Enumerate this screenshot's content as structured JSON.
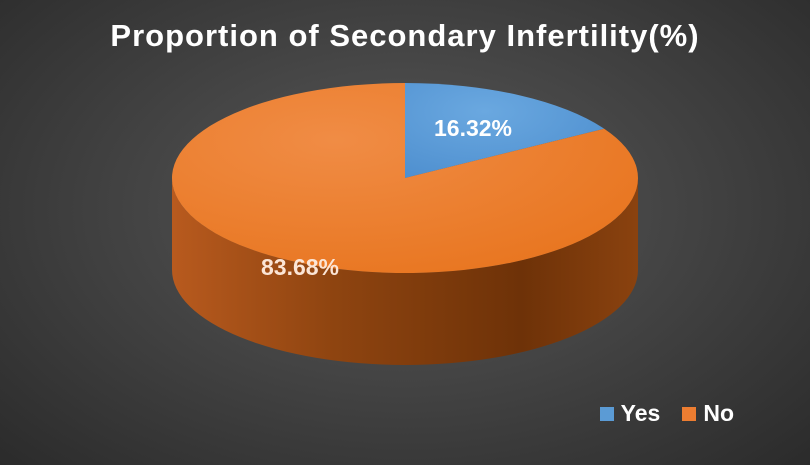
{
  "chart_data": {
    "type": "pie",
    "title": "Proportion of Secondary Infertility(%)",
    "categories": [
      "Yes",
      "No"
    ],
    "values": [
      16.32,
      83.68
    ],
    "data_labels": [
      "16.32%",
      "83.68%"
    ],
    "colors": [
      "#5b9bd5",
      "#ed7d31"
    ],
    "legend_position": "bottom-right",
    "style": "3d"
  },
  "legend": {
    "items": [
      {
        "label": "Yes",
        "color": "#5b9bd5"
      },
      {
        "label": "No",
        "color": "#ed7d31"
      }
    ]
  }
}
